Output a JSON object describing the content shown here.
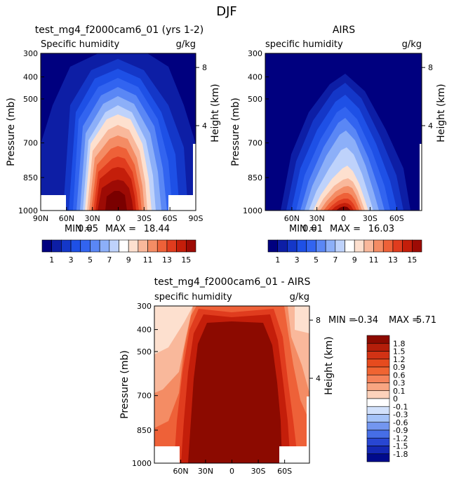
{
  "page_title": "DJF",
  "chart_data": [
    {
      "type": "contour",
      "title": "test_mg4_f2000cam6_01 (yrs 1-2)",
      "left_label": "Specific humidity",
      "right_label": "g/kg",
      "ylabel": "Pressure (mb)",
      "ylabel2": "Height (km)",
      "yticks": [
        "300",
        "400",
        "500",
        "700",
        "850",
        "1000"
      ],
      "height_ticks": [
        "8",
        "4"
      ],
      "xticks": [
        "90N",
        "60N",
        "30N",
        "0",
        "30S",
        "60S",
        "90S"
      ],
      "stats_text": [
        "MIN =",
        "0.05",
        "MAX =",
        "18.44"
      ],
      "min": 0.05,
      "max": 18.44,
      "levels": [
        1,
        2,
        3,
        4,
        5,
        6,
        7,
        8,
        9,
        10,
        11,
        12,
        13,
        14,
        15
      ]
    },
    {
      "type": "contour",
      "title": "AIRS",
      "left_label": "specific humidity",
      "right_label": "g/kg",
      "ylabel": "Pressure (mb)",
      "ylabel2": "Height (km)",
      "yticks": [
        "300",
        "400",
        "500",
        "700",
        "850",
        "1000"
      ],
      "height_ticks": [
        "8",
        "4"
      ],
      "xticks": [
        "60N",
        "30N",
        "0",
        "30S",
        "60S"
      ],
      "stats_text": [
        "MIN =",
        "0.01",
        "MAX =",
        "16.03"
      ],
      "min": 0.01,
      "max": 16.03,
      "levels": [
        1,
        2,
        3,
        4,
        5,
        6,
        7,
        8,
        9,
        10,
        11,
        12,
        13,
        14,
        15
      ]
    },
    {
      "type": "contour",
      "title": "test_mg4_f2000cam6_01 - AIRS",
      "left_label": "specific humidity",
      "right_label": "g/kg",
      "ylabel": "Pressure (mb)",
      "ylabel2": "Height (km)",
      "yticks": [
        "300",
        "400",
        "500",
        "700",
        "850",
        "1000"
      ],
      "height_ticks": [
        "8",
        "4"
      ],
      "xticks": [
        "60N",
        "30N",
        "0",
        "30S",
        "60S"
      ],
      "stats_text": [
        "MIN =",
        "-0.34",
        "MAX =",
        "5.71"
      ],
      "min": -0.34,
      "max": 5.71,
      "levels": [
        -1.8,
        -1.5,
        -1.2,
        -0.9,
        -0.6,
        -0.3,
        -0.1,
        0,
        0.1,
        0.3,
        0.6,
        0.9,
        1.2,
        1.5,
        1.8
      ]
    }
  ],
  "colorbar_h": {
    "labels": [
      "1",
      "3",
      "5",
      "7",
      "9",
      "11",
      "13",
      "15"
    ],
    "colors": [
      "#00007f",
      "#0d1ea5",
      "#1437c8",
      "#1e50e6",
      "#3264f0",
      "#5a87f5",
      "#8caff8",
      "#bed2fb",
      "#ffffff",
      "#fde0cf",
      "#f9b89b",
      "#f48c64",
      "#ee6138",
      "#e03c1e",
      "#c41e0a",
      "#9d0b05"
    ]
  },
  "colorbar_v": {
    "labels": [
      "1.8",
      "1.5",
      "1.2",
      "0.9",
      "0.6",
      "0.3",
      "0.1",
      "0",
      "-0.1",
      "-0.3",
      "-0.6",
      "-0.9",
      "-1.2",
      "-1.5",
      "-1.8"
    ],
    "colors": [
      "#8c0a00",
      "#b41e0a",
      "#d23214",
      "#e64b1e",
      "#f06432",
      "#f5825a",
      "#f8a582",
      "#fdd2bb",
      "#ffffff",
      "#d2e1fb",
      "#a5c3f8",
      "#7396f0",
      "#466ee6",
      "#2846d2",
      "#1428b4",
      "#000a8c"
    ]
  }
}
